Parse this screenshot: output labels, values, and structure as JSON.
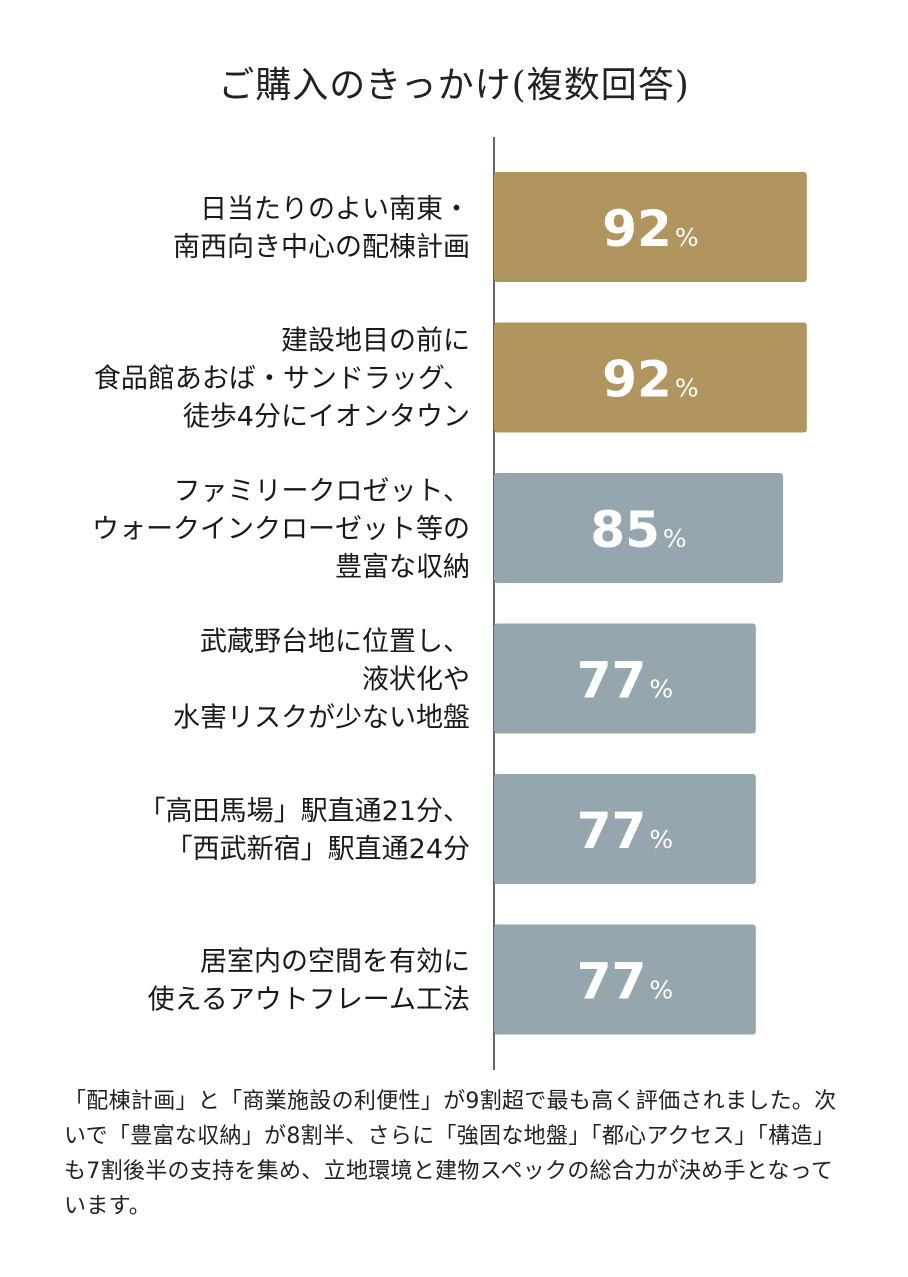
{
  "chart_data": {
    "type": "bar",
    "orientation": "horizontal",
    "title": "ご購入のきっかけ(複数回答)",
    "categories": [
      [
        "日当たりのよい南東・",
        "南西向き中心の配棟計画"
      ],
      [
        "建設地目の前に",
        "食品館あおば・サンドラッグ、",
        "徒歩4分にイオンタウン"
      ],
      [
        "ファミリークロゼット、",
        "ウォークインクローゼット等の",
        "豊富な収納"
      ],
      [
        "武蔵野台地に位置し、",
        "液状化や",
        "水害リスクが少ない地盤"
      ],
      [
        "「高田馬場」駅直通21分、",
        "「西武新宿」駅直通24分"
      ],
      [
        "居室内の空間を有効に",
        "使えるアウトフレーム工法"
      ]
    ],
    "values": [
      92,
      92,
      85,
      77,
      77,
      77
    ],
    "unit": "%",
    "bar_colors": [
      "#b0955f",
      "#b0955f",
      "#96a6ae",
      "#96a6ae",
      "#96a6ae",
      "#96a6ae"
    ],
    "label_color": "#ffffff",
    "axis_color": "#333333",
    "xlim": [
      0,
      100
    ],
    "grid": false,
    "legend": "none"
  },
  "caption": "「配棟計画」と「商業施設の利便性」が9割超で最も高く評価されました。次いで「豊富な収納」が8割半、さらに「強固な地盤」「都心アクセス」「構造」も7割後半の支持を集め、立地環境と建物スペックの総合力が決め手となっています。"
}
